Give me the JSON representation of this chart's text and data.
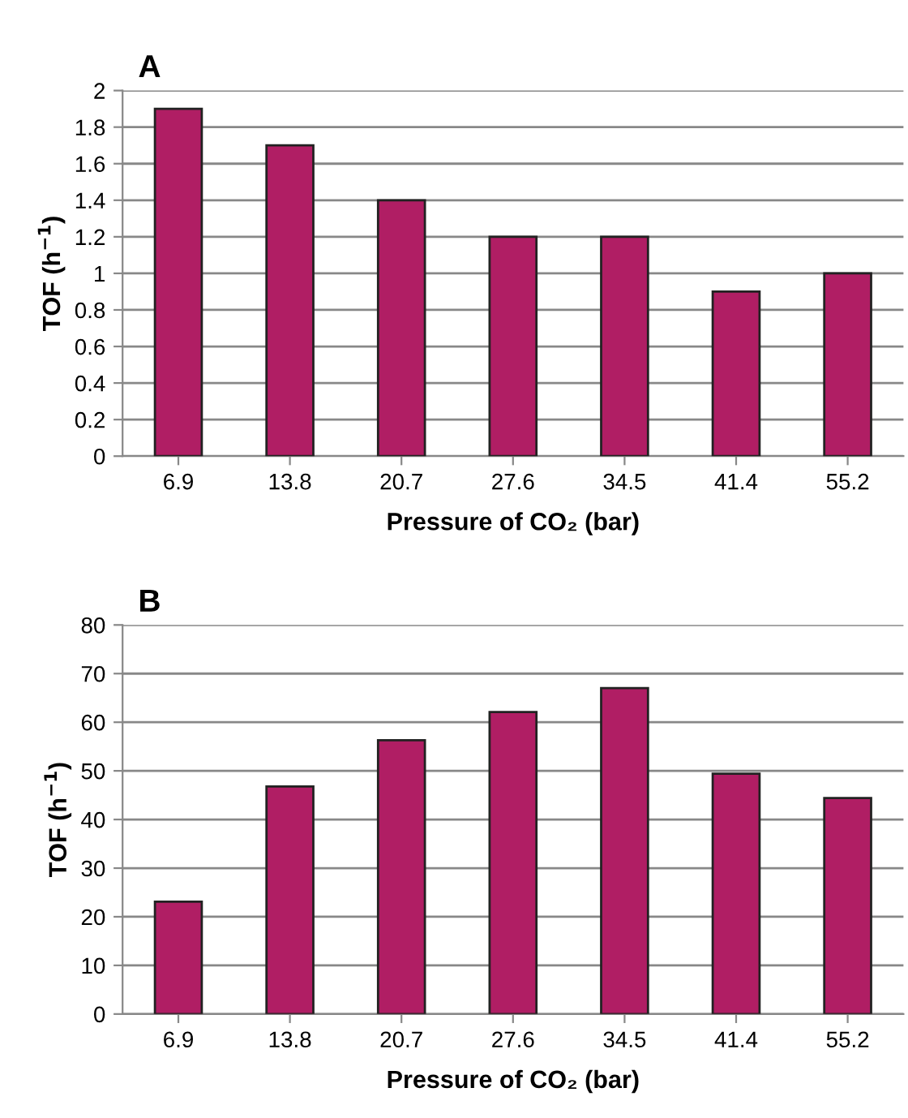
{
  "chart_data": [
    {
      "type": "bar",
      "title": "A",
      "xlabel": "Pressure of CO₂ (bar)",
      "ylabel": "TOF (h$^{−1}$)",
      "categories": [
        "6.9",
        "13.8",
        "20.7",
        "27.6",
        "34.5",
        "41.4",
        "55.2"
      ],
      "values": [
        1.9,
        1.7,
        1.4,
        1.2,
        1.2,
        0.9,
        1.0
      ],
      "color": "#b01e64",
      "ylim": [
        0,
        2
      ],
      "yticks": [
        0,
        {
          "value": 0.2,
          "label": "0.2"
        },
        {
          "value": 0.4,
          "label": "0.4"
        },
        {
          "value": 0.6,
          "label": "0.6"
        },
        {
          "value": 0.8,
          "label": "0.8"
        },
        1,
        {
          "value": 1.2,
          "label": "1.2"
        },
        {
          "value": 1.4,
          "label": "1.4"
        },
        {
          "value": 1.6,
          "label": "1.6"
        },
        {
          "value": 1.8,
          "label": "1.8"
        },
        2
      ],
      "grid": "y",
      "legend": false
    },
    {
      "type": "bar",
      "title": "B",
      "xlabel": "Pressure of CO₂ (bar)",
      "ylabel": "TOF (h$^{−1}$)",
      "categories": [
        "6.9",
        "13.8",
        "20.7",
        "27.6",
        "34.5",
        "41.4",
        "55.2"
      ],
      "values": [
        23.1,
        46.8,
        56.3,
        62.1,
        67.0,
        49.4,
        44.4
      ],
      "color": "#b01e64",
      "ylim": [
        0,
        80
      ],
      "yticks": [
        0,
        10,
        20,
        30,
        40,
        50,
        60,
        70,
        80
      ],
      "grid": "y",
      "legend": false
    }
  ]
}
